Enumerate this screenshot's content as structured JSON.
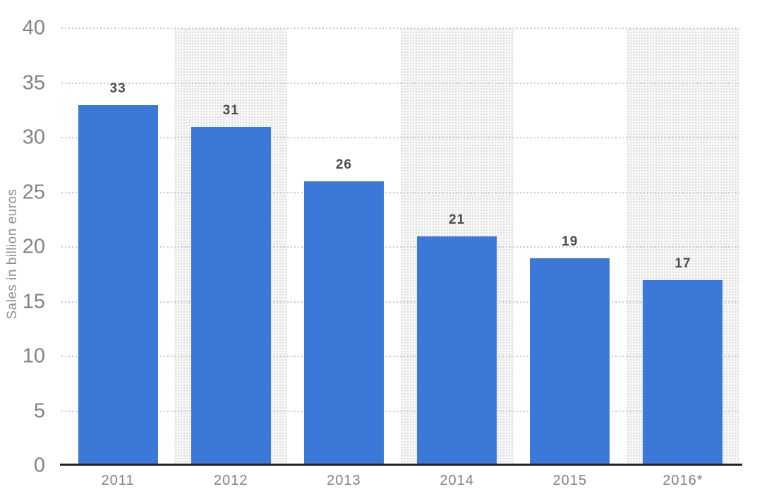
{
  "chart_data": {
    "type": "bar",
    "categories": [
      "2011",
      "2012",
      "2013",
      "2014",
      "2015",
      "2016*"
    ],
    "values": [
      33,
      31,
      26,
      21,
      19,
      17
    ],
    "title": "",
    "xlabel": "",
    "ylabel": "Sales in billion euros",
    "ylim": [
      0,
      40
    ],
    "yticks": [
      0,
      5,
      10,
      15,
      20,
      25,
      30,
      35,
      40
    ],
    "grid": "horizontal-dotted",
    "legend": "none",
    "banded_column_indexes": [
      1,
      3,
      5
    ],
    "colors": {
      "bar": "#3c78d8",
      "band_base": "#f7f7f7",
      "band_dot": "#dcdcdc",
      "gridline": "#c9c9c9",
      "axis_line": "#222222",
      "tick_label": "#828282",
      "value_label": "#4d4d4d",
      "y_title": "#8f8f8f",
      "background": "#ffffff"
    }
  }
}
